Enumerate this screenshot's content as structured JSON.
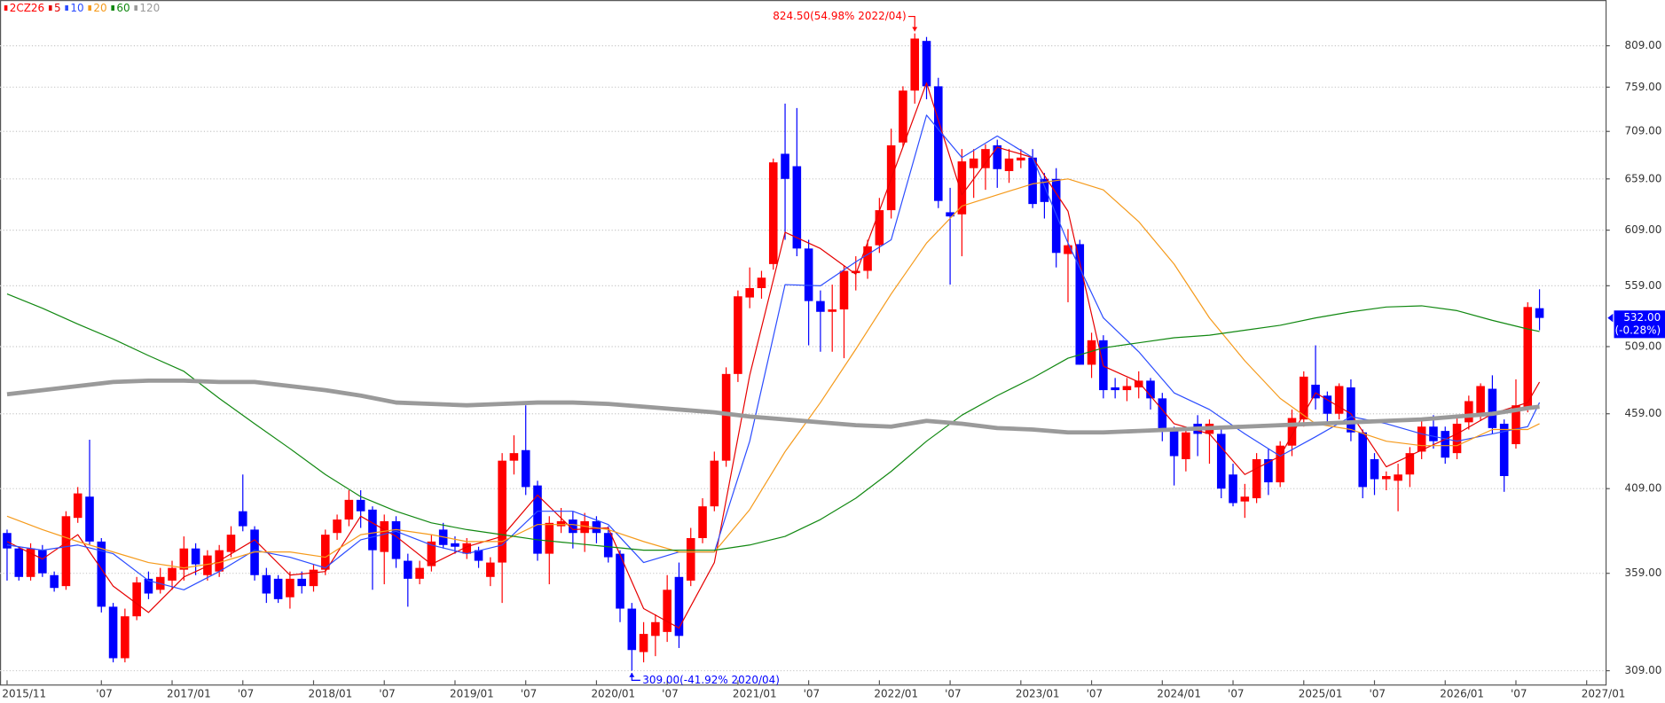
{
  "chart_data": {
    "type": "candlestick",
    "title": "2CZ26",
    "up_color": "#ff0000",
    "down_color": "#0000ff",
    "log": true,
    "grid": true,
    "legend": "top-left",
    "ylim": [
      302.5,
      868
    ],
    "yticks": [
      {
        "value": 309,
        "label": "309.00"
      },
      {
        "value": 359,
        "label": "359.00"
      },
      {
        "value": 409,
        "label": "409.00"
      },
      {
        "value": 459,
        "label": "459.00"
      },
      {
        "value": 509,
        "label": "509.00"
      },
      {
        "value": 559,
        "label": "559.00"
      },
      {
        "value": 609,
        "label": "609.00"
      },
      {
        "value": 659,
        "label": "659.00"
      },
      {
        "value": 709,
        "label": "709.00"
      },
      {
        "value": 759,
        "label": "759.00"
      },
      {
        "value": 809,
        "label": "809.00"
      }
    ],
    "xlim": [
      "2015/11",
      "2027/02"
    ],
    "xticks": [
      "2015/11",
      {
        "value": "2016/07",
        "label": "'07"
      },
      "2017/01",
      {
        "value": "2017/07",
        "label": "'07"
      },
      "2018/01",
      {
        "value": "2018/07",
        "label": "'07"
      },
      "2019/01",
      {
        "value": "2019/07",
        "label": "'07"
      },
      "2020/01",
      {
        "value": "2020/07",
        "label": "'07"
      },
      "2021/01",
      {
        "value": "2021/07",
        "label": "'07"
      },
      "2022/01",
      {
        "value": "2022/07",
        "label": "'07"
      },
      "2023/01",
      {
        "value": "2023/07",
        "label": "'07"
      },
      "2024/01",
      {
        "value": "2024/07",
        "label": "'07"
      },
      "2025/01",
      {
        "value": "2025/07",
        "label": "'07"
      },
      "2026/01",
      {
        "value": "2026/07",
        "label": "'07"
      },
      "2027/01"
    ],
    "x": [
      "2015/11",
      "2015/12",
      "2016/01",
      "2016/02",
      "2016/03",
      "2016/04",
      "2016/05",
      "2016/06",
      "2016/07",
      "2016/08",
      "2016/09",
      "2016/10",
      "2016/11",
      "2016/12",
      "2017/01",
      "2017/02",
      "2017/03",
      "2017/04",
      "2017/05",
      "2017/06",
      "2017/07",
      "2017/08",
      "2017/09",
      "2017/10",
      "2017/11",
      "2017/12",
      "2018/01",
      "2018/02",
      "2018/03",
      "2018/04",
      "2018/05",
      "2018/06",
      "2018/07",
      "2018/08",
      "2018/09",
      "2018/10",
      "2018/11",
      "2018/12",
      "2019/01",
      "2019/02",
      "2019/03",
      "2019/04",
      "2019/05",
      "2019/06",
      "2019/07",
      "2019/08",
      "2019/09",
      "2019/10",
      "2019/11",
      "2019/12",
      "2020/01",
      "2020/02",
      "2020/03",
      "2020/04",
      "2020/05",
      "2020/06",
      "2020/07",
      "2020/08",
      "2020/09",
      "2020/10",
      "2020/11",
      "2020/12",
      "2021/01",
      "2021/02",
      "2021/03",
      "2021/04",
      "2021/05",
      "2021/06",
      "2021/07",
      "2021/08",
      "2021/09",
      "2021/10",
      "2021/11",
      "2021/12",
      "2022/01",
      "2022/02",
      "2022/03",
      "2022/04",
      "2022/05",
      "2022/06",
      "2022/07",
      "2022/08",
      "2022/09",
      "2022/10",
      "2022/11",
      "2022/12",
      "2023/01",
      "2023/02",
      "2023/03",
      "2023/04",
      "2023/05",
      "2023/06",
      "2023/07",
      "2023/08",
      "2023/09",
      "2023/10",
      "2023/11",
      "2023/12",
      "2024/01",
      "2024/02",
      "2024/03",
      "2024/04",
      "2024/05",
      "2024/06",
      "2024/07",
      "2024/08",
      "2024/09",
      "2024/10",
      "2024/11",
      "2024/12",
      "2025/01",
      "2025/02",
      "2025/03",
      "2025/04",
      "2025/05",
      "2025/06",
      "2025/07",
      "2025/08",
      "2025/09",
      "2025/10",
      "2025/11",
      "2025/12",
      "2026/01",
      "2026/02",
      "2026/03",
      "2026/04",
      "2026/05",
      "2026/06",
      "2026/07",
      "2026/08",
      "2026/09"
    ],
    "open": [
      382,
      373,
      357,
      372,
      358,
      352,
      391,
      404,
      377,
      341,
      315,
      336,
      356,
      350,
      355,
      361,
      373,
      358,
      360,
      371,
      395,
      384,
      358,
      356,
      346,
      356,
      352,
      361,
      382,
      390,
      402,
      396,
      371,
      389,
      366,
      356,
      363,
      384,
      376,
      370,
      372,
      357,
      365,
      427,
      434,
      411,
      370,
      386,
      390,
      382,
      389,
      382,
      370,
      340,
      318,
      326,
      328,
      357,
      355,
      379,
      398,
      427,
      488,
      549,
      557,
      578,
      685,
      672,
      592,
      546,
      537,
      539,
      570,
      572,
      595,
      628,
      697,
      755,
      815,
      760,
      626,
      624,
      670,
      670,
      694,
      667,
      678,
      681,
      659,
      659,
      587,
      596,
      495,
      514,
      478,
      476,
      478,
      483,
      470,
      448,
      428,
      452,
      445,
      445,
      418,
      401,
      403,
      428,
      413,
      437,
      455,
      480,
      472,
      459,
      478,
      446,
      428,
      415,
      414,
      418,
      433,
      450,
      447,
      432,
      453,
      458,
      477,
      452,
      438,
      464,
      540
    ],
    "high": [
      384,
      374,
      376,
      375,
      360,
      395,
      410,
      441,
      379,
      343,
      340,
      357,
      360,
      362,
      366,
      380,
      376,
      372,
      375,
      386,
      418,
      386,
      362,
      358,
      360,
      360,
      364,
      384,
      393,
      408,
      408,
      398,
      393,
      392,
      370,
      366,
      381,
      388,
      380,
      379,
      374,
      368,
      432,
      444,
      465,
      414,
      392,
      397,
      395,
      394,
      392,
      386,
      372,
      343,
      333,
      337,
      358,
      365,
      385,
      403,
      433,
      493,
      555,
      575,
      572,
      680,
      740,
      735,
      600,
      555,
      560,
      577,
      585,
      600,
      640,
      712,
      760,
      824.5,
      820,
      770,
      650,
      690,
      690,
      695,
      700,
      690,
      690,
      690,
      665,
      670,
      610,
      600,
      520,
      518,
      485,
      485,
      490,
      485,
      474,
      450,
      450,
      458,
      455,
      450,
      425,
      412,
      432,
      435,
      440,
      462,
      490,
      510,
      475,
      481,
      484,
      448,
      432,
      420,
      425,
      436,
      455,
      458,
      450,
      456,
      472,
      481,
      487,
      455,
      484,
      545,
      556
    ],
    "low": [
      355,
      355,
      355,
      357,
      349,
      350,
      388,
      375,
      338,
      313,
      313,
      334,
      345,
      348,
      350,
      355,
      358,
      355,
      357,
      368,
      383,
      355,
      343,
      343,
      340,
      348,
      349,
      358,
      378,
      386,
      385,
      350,
      353,
      362,
      341,
      353,
      360,
      373,
      370,
      367,
      362,
      352,
      343,
      418,
      405,
      366,
      353,
      382,
      373,
      371,
      376,
      365,
      333,
      309,
      313,
      316,
      323,
      320,
      352,
      376,
      395,
      423,
      482,
      540,
      548,
      573,
      600,
      585,
      510,
      505,
      505,
      500,
      555,
      565,
      588,
      620,
      692,
      740,
      745,
      630,
      560,
      585,
      640,
      648,
      650,
      655,
      670,
      630,
      620,
      575,
      545,
      495,
      485,
      470,
      470,
      468,
      470,
      462,
      440,
      411,
      420,
      430,
      425,
      403,
      398,
      391,
      400,
      405,
      410,
      430,
      450,
      462,
      452,
      455,
      440,
      403,
      405,
      408,
      395,
      410,
      428,
      435,
      425,
      428,
      448,
      454,
      445,
      407,
      435,
      460,
      522
    ],
    "close": [
      373,
      357,
      373,
      359,
      351,
      392,
      406,
      377,
      341,
      315,
      336,
      354,
      348,
      357,
      362,
      373,
      364,
      369,
      372,
      381,
      386,
      358,
      348,
      345,
      356,
      352,
      361,
      381,
      390,
      402,
      395,
      372,
      389,
      367,
      356,
      362,
      377,
      375,
      374,
      376,
      366,
      365,
      427,
      432,
      410,
      370,
      388,
      389,
      382,
      389,
      382,
      368,
      340,
      319,
      327,
      333,
      350,
      326,
      379,
      398,
      427,
      488,
      550,
      557,
      566,
      676,
      659,
      592,
      546,
      537,
      539,
      572,
      572,
      594,
      628,
      694,
      755,
      818,
      760,
      637,
      622,
      677,
      680,
      690,
      669,
      680,
      681,
      634,
      636,
      588,
      595,
      495,
      514,
      476,
      476,
      479,
      483,
      470,
      447,
      430,
      446,
      445,
      452,
      409,
      400,
      404,
      428,
      413,
      437,
      456,
      486,
      470,
      459,
      479,
      446,
      410,
      415,
      417,
      418,
      432,
      450,
      440,
      429,
      452,
      468,
      479,
      449,
      417,
      465,
      541,
      532
    ],
    "ma_x": [
      "2015/11",
      "2016/02",
      "2016/05",
      "2016/08",
      "2016/11",
      "2017/02",
      "2017/05",
      "2017/08",
      "2017/11",
      "2018/02",
      "2018/05",
      "2018/08",
      "2018/11",
      "2019/02",
      "2019/05",
      "2019/08",
      "2019/11",
      "2020/02",
      "2020/05",
      "2020/08",
      "2020/11",
      "2021/02",
      "2021/05",
      "2021/08",
      "2021/11",
      "2022/02",
      "2022/05",
      "2022/08",
      "2022/11",
      "2023/02",
      "2023/05",
      "2023/08",
      "2023/11",
      "2024/02",
      "2024/05",
      "2024/08",
      "2024/11",
      "2025/02",
      "2025/05",
      "2025/08",
      "2025/11",
      "2026/02",
      "2026/05",
      "2026/08",
      "2026/09"
    ],
    "ma_series": [
      {
        "name": "5",
        "color": "#e60000",
        "width": 1,
        "values": [
          377,
          367,
          381,
          352,
          338,
          357,
          366,
          378,
          358,
          360,
          392,
          380,
          364,
          374,
          380,
          405,
          384,
          385,
          340,
          330,
          365,
          487,
          607,
          592,
          569,
          659,
          764,
          643,
          692,
          681,
          627,
          494,
          482,
          452,
          445,
          418,
          430,
          474,
          459,
          423,
          434,
          445,
          459,
          467,
          482
        ]
      },
      {
        "name": "10",
        "color": "#2b4cff",
        "width": 1,
        "values": [
          375,
          372,
          375,
          370,
          355,
          350,
          360,
          372,
          368,
          362,
          378,
          383,
          375,
          370,
          375,
          395,
          395,
          387,
          365,
          371,
          371,
          440,
          560,
          559,
          580,
          600,
          727,
          681,
          704,
          681,
          597,
          532,
          505,
          474,
          462,
          445,
          430,
          443,
          457,
          452,
          445,
          440,
          445,
          450,
          467
        ]
      },
      {
        "name": "20",
        "color": "#f59a1b",
        "width": 1,
        "values": [
          392,
          384,
          377,
          371,
          365,
          362,
          365,
          371,
          371,
          368,
          381,
          384,
          381,
          377,
          377,
          387,
          387,
          384,
          377,
          371,
          371,
          396,
          433,
          467,
          507,
          552,
          597,
          632,
          643,
          654,
          659,
          648,
          617,
          578,
          532,
          498,
          470,
          452,
          448,
          440,
          437,
          437,
          448,
          448,
          452
        ]
      },
      {
        "name": "60",
        "color": "#118811",
        "width": 1,
        "values": [
          552,
          540,
          527,
          515,
          502,
          490,
          470,
          452,
          435,
          418,
          404,
          395,
          388,
          384,
          381,
          378,
          376,
          374,
          372,
          372,
          372,
          375,
          380,
          390,
          403,
          420,
          440,
          458,
          472,
          485,
          500,
          508,
          512,
          516,
          518,
          522,
          526,
          532,
          537,
          541,
          542,
          538,
          530,
          523,
          521
        ]
      },
      {
        "name": "120",
        "color": "#9a9a9a",
        "width": 4,
        "values": [
          473,
          476,
          479,
          482,
          483,
          483,
          482,
          482,
          479,
          476,
          472,
          467,
          466,
          465,
          466,
          467,
          467,
          466,
          464,
          462,
          460,
          457,
          455,
          453,
          451,
          450,
          454,
          452,
          449,
          448,
          446,
          446,
          447,
          448,
          449,
          450,
          451,
          452,
          453,
          454,
          455,
          457,
          459,
          463,
          464
        ]
      }
    ],
    "annotations": [
      {
        "text": "824.50(54.98% 2022/04)",
        "x": "2022/04",
        "y": 824.5,
        "color": "#ff0000",
        "side": "above"
      },
      {
        "text": "309.00(-41.92% 2020/04)",
        "x": "2020/04",
        "y": 309,
        "color": "#0000ff",
        "side": "below"
      }
    ],
    "last_price": {
      "value": 532,
      "label": "532.00"
    },
    "last_change": "(-0.28%)",
    "last_color": "#0000ff"
  }
}
